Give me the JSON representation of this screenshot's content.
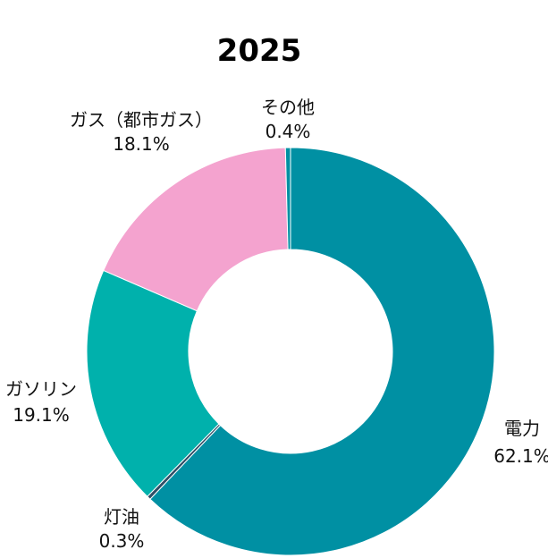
{
  "chart_data": {
    "type": "pie",
    "title": "2025",
    "donut": true,
    "slices": [
      {
        "label": "電力",
        "value": 62.1,
        "value_label": "62.1%",
        "color": "#0090a3"
      },
      {
        "label": "灯油",
        "value": 0.3,
        "value_label": "0.3%",
        "color": "#2f4e66"
      },
      {
        "label": "ガソリン",
        "value": 19.1,
        "value_label": "19.1%",
        "color": "#00b1ac"
      },
      {
        "label": "ガス（都市ガス）",
        "value": 18.1,
        "value_label": "18.1%",
        "color": "#f4a3cf"
      },
      {
        "label": "その他",
        "value": 0.4,
        "value_label": "0.4%",
        "color": "#0090a3"
      }
    ]
  }
}
